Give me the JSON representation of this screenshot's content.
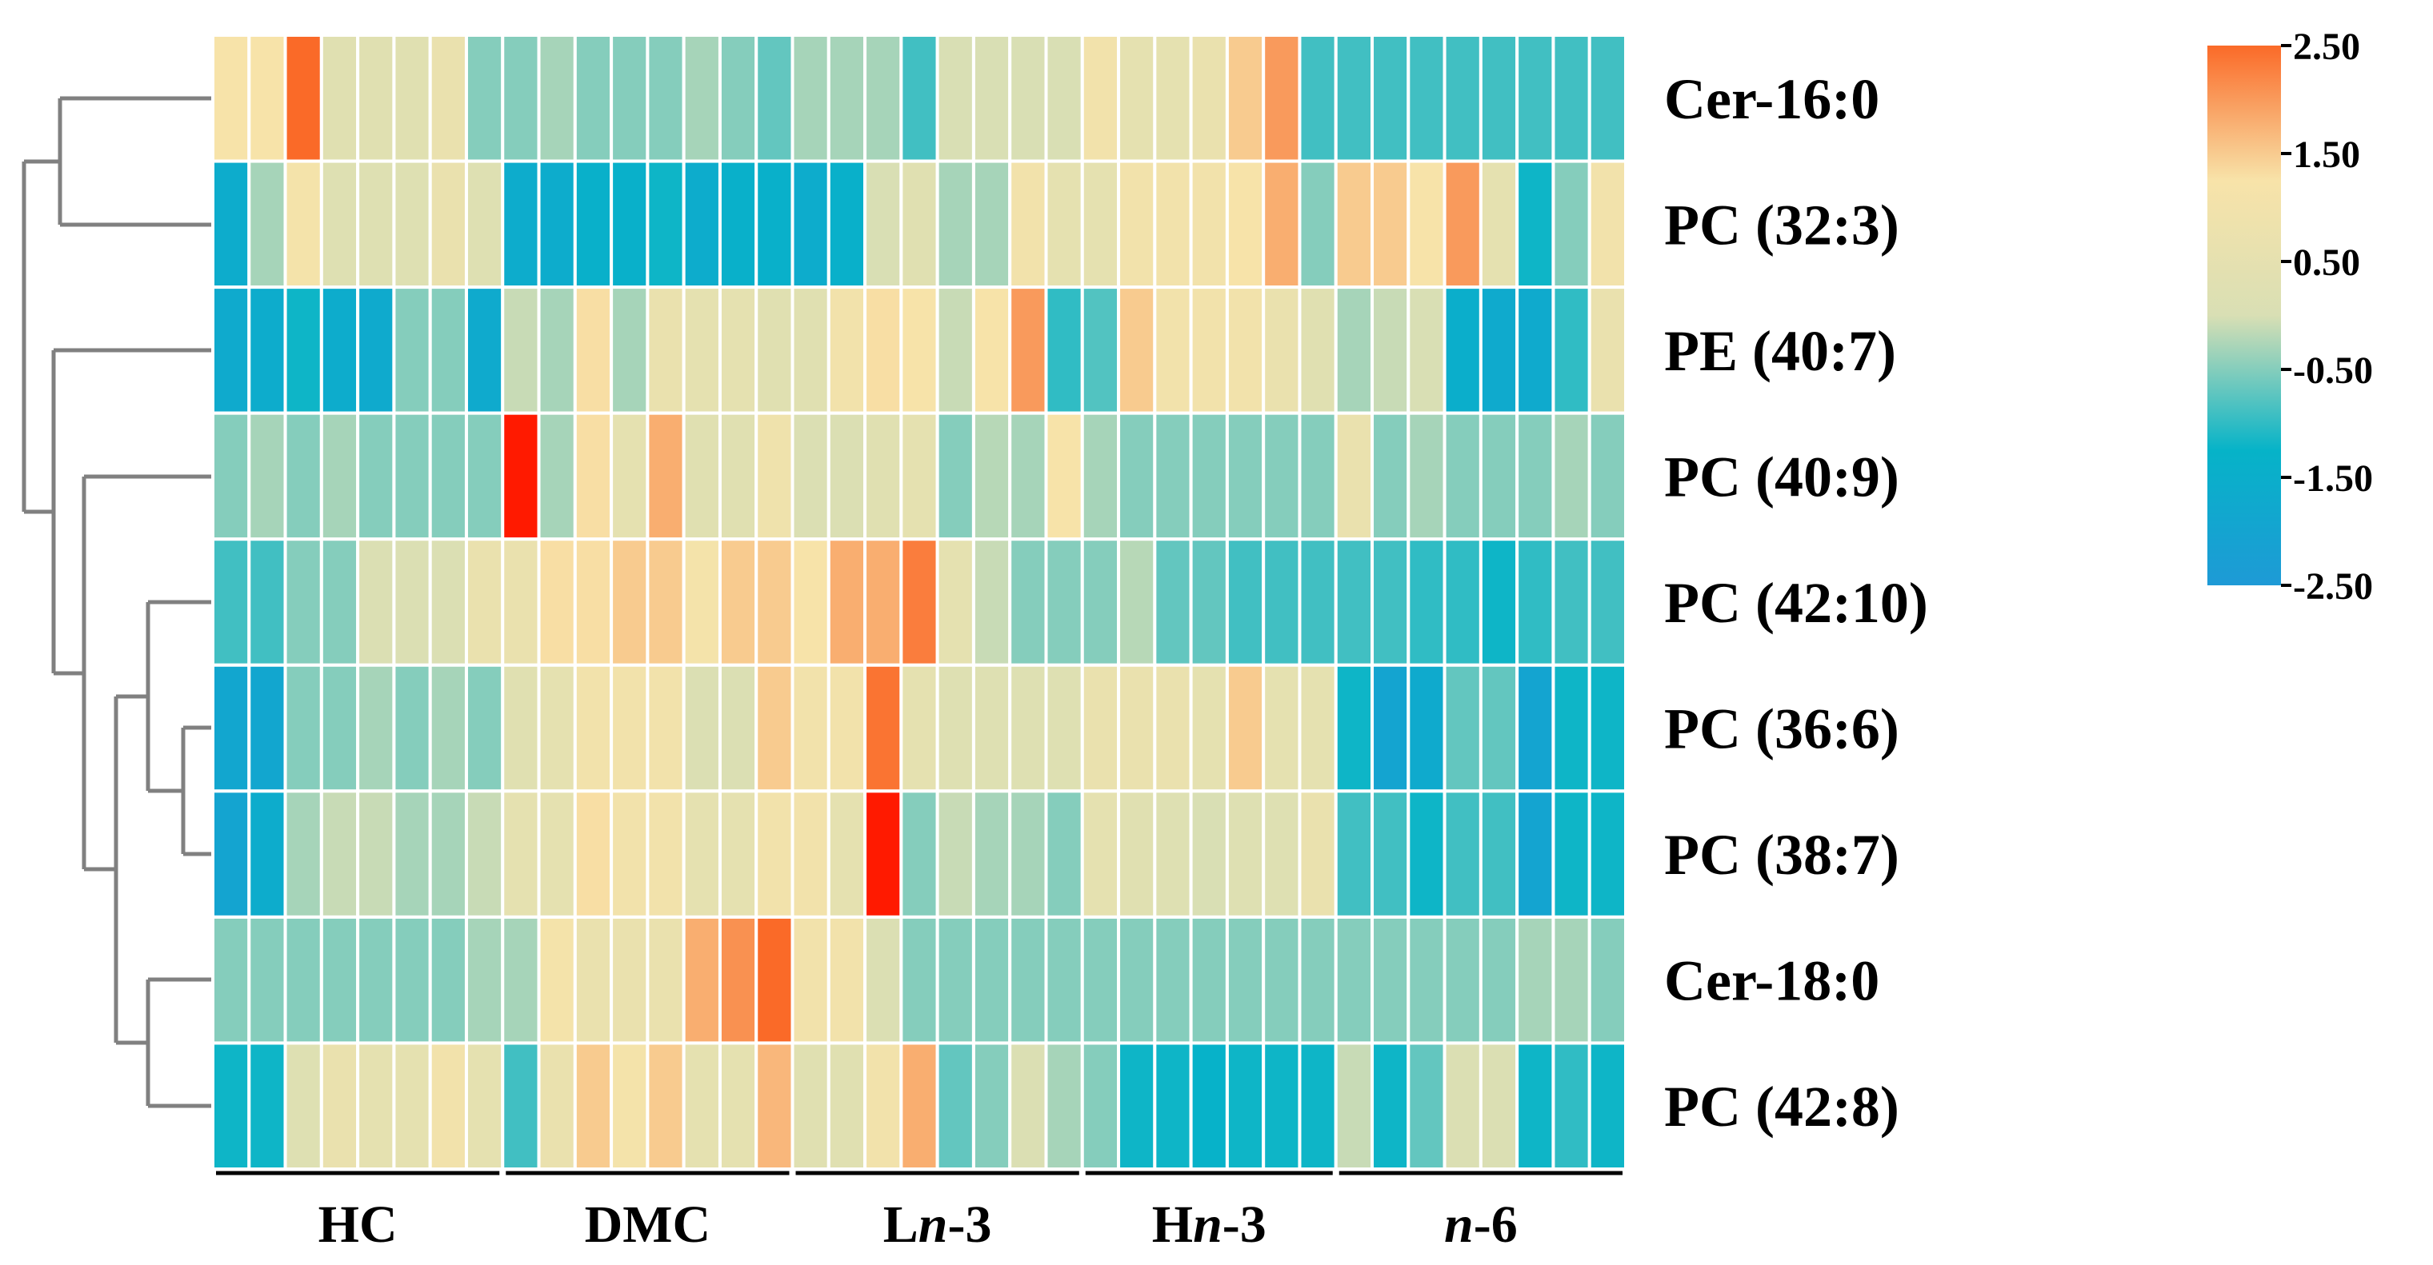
{
  "chart_data": {
    "type": "heatmap",
    "title": "",
    "rows": [
      "Cer-16:0",
      "PC (32:3)",
      "PE (40:7)",
      "PC (40:9)",
      "PC (42:10)",
      "PC (36:6)",
      "PC (38:7)",
      "Cer-18:0",
      "PC (42:8)"
    ],
    "groups": [
      {
        "id": "hc",
        "label": "HC",
        "parts": [
          {
            "t": "HC",
            "i": false
          }
        ],
        "n_samples": 8
      },
      {
        "id": "dmc",
        "label": "DMC",
        "parts": [
          {
            "t": "DMC",
            "i": false
          }
        ],
        "n_samples": 8
      },
      {
        "id": "ln3",
        "label": "Ln-3",
        "parts": [
          {
            "t": "L",
            "i": false
          },
          {
            "t": "n",
            "i": true
          },
          {
            "t": "-3",
            "i": false
          }
        ],
        "n_samples": 8
      },
      {
        "id": "hn3",
        "label": "Hn-3",
        "parts": [
          {
            "t": "H",
            "i": false
          },
          {
            "t": "n",
            "i": true
          },
          {
            "t": "-3",
            "i": false
          }
        ],
        "n_samples": 7
      },
      {
        "id": "n6",
        "label": "n-6",
        "parts": [
          {
            "t": "n",
            "i": true
          },
          {
            "t": "-6",
            "i": false
          }
        ],
        "n_samples": 8
      }
    ],
    "values": [
      [
        1.2,
        1.2,
        2.5,
        0.3,
        0.3,
        0.3,
        0.7,
        -0.5,
        -0.5,
        -0.3,
        -0.5,
        -0.5,
        -0.5,
        -0.3,
        -0.5,
        -0.7,
        -0.3,
        -0.3,
        -0.3,
        -0.9,
        0.0,
        0.0,
        0.0,
        0.0,
        1.0,
        0.5,
        0.5,
        0.7,
        1.5,
        2.0,
        -0.9,
        -0.9,
        -0.9,
        -0.9,
        -0.9,
        -0.9,
        -0.9,
        -0.9,
        -0.9
      ],
      [
        -1.6,
        -0.3,
        1.1,
        0.2,
        0.2,
        0.2,
        0.7,
        0.2,
        -1.6,
        -1.6,
        -1.4,
        -1.4,
        -1.2,
        -1.6,
        -1.4,
        -1.4,
        -1.6,
        -1.4,
        0.0,
        0.3,
        -0.3,
        -0.3,
        1.0,
        0.5,
        0.5,
        1.0,
        1.0,
        1.0,
        1.2,
        1.8,
        -0.5,
        1.5,
        1.5,
        1.2,
        2.0,
        0.5,
        -1.2,
        -0.5,
        1.0
      ],
      [
        -1.7,
        -1.6,
        -1.2,
        -1.6,
        -1.7,
        -0.5,
        -0.5,
        -1.7,
        -0.1,
        -0.3,
        1.3,
        -0.3,
        0.7,
        0.5,
        0.5,
        0.3,
        0.3,
        1.0,
        1.3,
        1.2,
        -0.1,
        1.2,
        2.0,
        -1.0,
        -0.8,
        1.5,
        1.0,
        1.0,
        1.0,
        0.7,
        0.3,
        -0.3,
        -0.1,
        0.0,
        -1.5,
        -1.7,
        -1.7,
        -1.0,
        0.7
      ],
      [
        -0.5,
        -0.3,
        -0.5,
        -0.3,
        -0.5,
        -0.5,
        -0.5,
        -0.5,
        3.0,
        -0.3,
        1.3,
        0.5,
        1.8,
        0.3,
        0.3,
        0.9,
        0.1,
        0.1,
        0.3,
        0.5,
        -0.5,
        -0.2,
        -0.3,
        1.2,
        -0.3,
        -0.5,
        -0.5,
        -0.5,
        -0.5,
        -0.5,
        -0.5,
        0.7,
        -0.5,
        -0.3,
        -0.5,
        -0.5,
        -0.5,
        -0.3,
        -0.5
      ],
      [
        -0.9,
        -0.9,
        -0.5,
        -0.5,
        0.1,
        0.1,
        0.1,
        0.7,
        0.7,
        1.3,
        1.3,
        1.5,
        1.5,
        1.1,
        1.5,
        1.5,
        1.2,
        1.8,
        1.8,
        2.3,
        0.5,
        -0.1,
        -0.5,
        -0.5,
        -0.5,
        -0.2,
        -0.7,
        -0.7,
        -0.9,
        -0.9,
        -0.9,
        -0.9,
        -0.9,
        -1.0,
        -1.0,
        -1.2,
        -1.0,
        -0.9,
        -0.9
      ],
      [
        -1.9,
        -1.9,
        -0.5,
        -0.5,
        -0.3,
        -0.5,
        -0.3,
        -0.5,
        0.3,
        0.5,
        1.0,
        1.0,
        1.0,
        0.1,
        0.1,
        1.5,
        1.0,
        1.0,
        2.4,
        0.5,
        0.2,
        0.2,
        0.2,
        0.2,
        0.7,
        0.7,
        0.7,
        0.5,
        1.5,
        0.5,
        0.5,
        -1.2,
        -2.0,
        -1.7,
        -0.7,
        -0.7,
        -2.0,
        -1.2,
        -1.2
      ],
      [
        -2.0,
        -1.6,
        -0.3,
        -0.1,
        -0.1,
        -0.3,
        -0.3,
        -0.1,
        0.5,
        0.5,
        1.3,
        1.0,
        1.0,
        0.5,
        0.5,
        1.0,
        1.0,
        0.5,
        2.8,
        -0.5,
        -0.1,
        -0.3,
        -0.3,
        -0.5,
        0.5,
        0.3,
        0.2,
        0.0,
        0.2,
        0.2,
        0.7,
        -0.9,
        -0.9,
        -1.2,
        -0.9,
        -0.9,
        -2.0,
        -1.2,
        -1.2
      ],
      [
        -0.5,
        -0.5,
        -0.5,
        -0.5,
        -0.5,
        -0.5,
        -0.5,
        -0.3,
        -0.3,
        1.1,
        0.7,
        0.7,
        0.7,
        1.8,
        2.1,
        2.5,
        1.0,
        1.0,
        0.1,
        -0.5,
        -0.5,
        -0.5,
        -0.5,
        -0.5,
        -0.5,
        -0.5,
        -0.5,
        -0.5,
        -0.5,
        -0.5,
        -0.5,
        -0.5,
        -0.5,
        -0.5,
        -0.5,
        -0.5,
        -0.3,
        -0.3,
        -0.5
      ],
      [
        -1.2,
        -1.2,
        0.2,
        0.7,
        0.5,
        0.5,
        1.0,
        0.5,
        -0.9,
        0.7,
        1.5,
        1.1,
        1.5,
        0.5,
        0.5,
        1.7,
        0.3,
        0.3,
        1.0,
        1.8,
        -0.7,
        -0.5,
        0.1,
        -0.3,
        -0.5,
        -1.2,
        -1.2,
        -1.3,
        -1.2,
        -1.2,
        -1.2,
        -0.1,
        -1.2,
        -0.7,
        0.1,
        0.1,
        -1.2,
        -1.0,
        -1.2
      ]
    ],
    "colorbar": {
      "min": -2.5,
      "max": 2.5,
      "ticks": [
        "2.50",
        "1.50",
        "0.50",
        "-0.50",
        "-1.50",
        "-2.50"
      ],
      "colors": [
        "#1e9ad6",
        "#06b3c8",
        "#d9dfb4",
        "#f8e3a9",
        "#fa6a28"
      ]
    },
    "cluster_color": "#808080"
  }
}
